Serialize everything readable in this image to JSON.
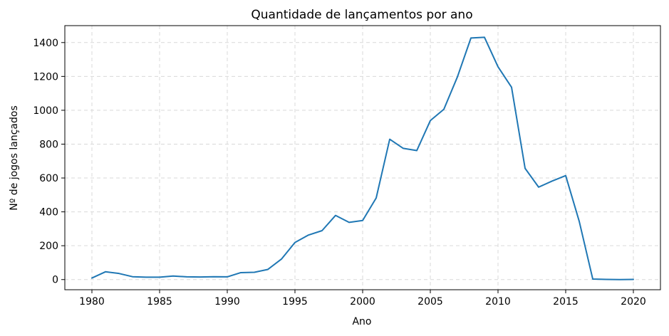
{
  "chart_data": {
    "type": "line",
    "title": "Quantidade de lançamentos por ano",
    "xlabel": "Ano",
    "ylabel": "Nº de jogos lançados",
    "xlim": [
      1978,
      2022
    ],
    "ylim": [
      -60,
      1500
    ],
    "xticks": [
      1980,
      1985,
      1990,
      1995,
      2000,
      2005,
      2010,
      2015,
      2020
    ],
    "yticks": [
      0,
      200,
      400,
      600,
      800,
      1000,
      1200,
      1400
    ],
    "grid": true,
    "x": [
      1980,
      1981,
      1982,
      1983,
      1984,
      1985,
      1986,
      1987,
      1988,
      1989,
      1990,
      1991,
      1992,
      1993,
      1994,
      1995,
      1996,
      1997,
      1998,
      1999,
      2000,
      2001,
      2002,
      2003,
      2004,
      2005,
      2006,
      2007,
      2008,
      2009,
      2010,
      2011,
      2012,
      2013,
      2014,
      2015,
      2016,
      2017,
      2018,
      2019,
      2020
    ],
    "series": [
      {
        "color": "#1f77b4",
        "values": [
          9,
          46,
          36,
          17,
          14,
          14,
          21,
          16,
          15,
          17,
          16,
          41,
          43,
          60,
          121,
          219,
          263,
          289,
          379,
          338,
          349,
          482,
          829,
          775,
          762,
          939,
          1006,
          1197,
          1427,
          1431,
          1257,
          1136,
          657,
          546,
          582,
          614,
          344,
          3,
          1,
          0,
          1
        ]
      }
    ]
  }
}
